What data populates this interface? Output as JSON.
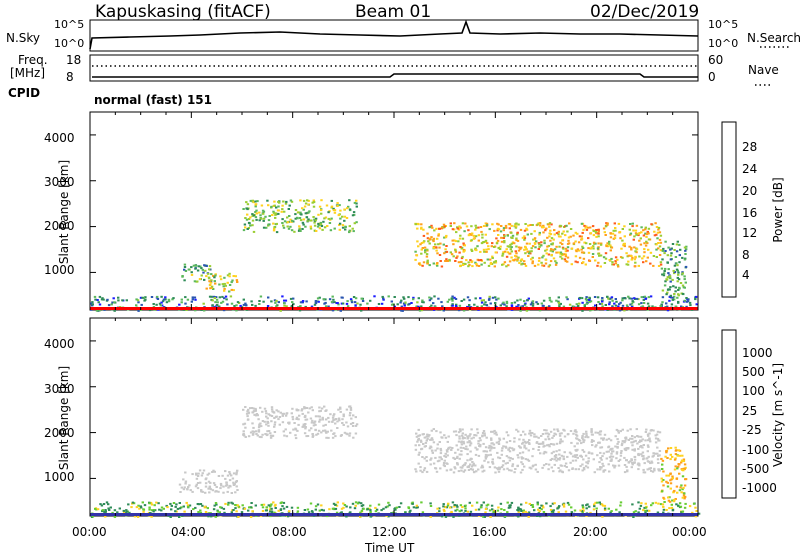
{
  "header": {
    "station": "Kapuskasing (fitACF)",
    "beam": "Beam 01",
    "date": "02/Dec/2019"
  },
  "top_strip": {
    "left_label": "N.Sky",
    "right_label": "N.Search",
    "left_ticks": [
      "10^5",
      "10^0"
    ],
    "right_ticks": [
      "10^5",
      "10^0"
    ]
  },
  "freq_strip": {
    "left_label_line1": "Freq.",
    "left_label_line2": "[MHz]",
    "cpid_label": "CPID",
    "right_label": "Nave",
    "left_ticks": [
      "18",
      "8"
    ],
    "right_ticks": [
      "60",
      "0"
    ]
  },
  "cpid_text": "normal (fast) 151",
  "colors": {
    "power_scale": [
      "#1a1aff",
      "#2a55b0",
      "#2e8b57",
      "#5cb85c",
      "#9acd32",
      "#ffd21f",
      "#ff9f1a",
      "#ff5a1a",
      "#ff0000"
    ],
    "velocity_scale": [
      "#ff0000",
      "#ff5a1a",
      "#ff9f1a",
      "#ffd21f",
      "#c8c8c8",
      "#66cc33",
      "#2e8b57",
      "#2a55b0",
      "#1a1aff"
    ],
    "ground_scatter": "#c8c8c8"
  },
  "chart_data": [
    {
      "type": "heatmap",
      "title": "",
      "xlabel": "",
      "ylabel": "Slant Range [km]",
      "y_ticks": [
        "1000",
        "2000",
        "3000",
        "4000"
      ],
      "ylim": [
        180,
        4500
      ],
      "xlim_hours": [
        0,
        24
      ],
      "colorbar": {
        "label": "Power [dB]",
        "ticks": [
          "4",
          "8",
          "12",
          "16",
          "20",
          "24",
          "28"
        ],
        "range": [
          0,
          30
        ]
      },
      "echo_regions": [
        {
          "t_start": 0.0,
          "t_end": 24.0,
          "r_min": 180,
          "r_max": 500,
          "level": 7
        },
        {
          "t_start": 3.5,
          "t_end": 4.8,
          "r_min": 800,
          "r_max": 1200,
          "level": 11
        },
        {
          "t_start": 4.5,
          "t_end": 5.8,
          "r_min": 600,
          "r_max": 1000,
          "level": 16
        },
        {
          "t_start": 6.0,
          "t_end": 10.5,
          "r_min": 1900,
          "r_max": 2600,
          "level": 13
        },
        {
          "t_start": 12.8,
          "t_end": 22.5,
          "r_min": 1150,
          "r_max": 2100,
          "level": 19
        },
        {
          "t_start": 22.5,
          "t_end": 23.5,
          "r_min": 500,
          "r_max": 1700,
          "level": 10
        }
      ]
    },
    {
      "type": "heatmap",
      "title": "",
      "xlabel": "Time UT",
      "ylabel": "Slant Range [km]",
      "x_ticks": [
        "00:00",
        "04:00",
        "08:00",
        "12:00",
        "16:00",
        "20:00",
        "00:00"
      ],
      "y_ticks": [
        "1000",
        "2000",
        "3000",
        "4000"
      ],
      "ylim": [
        180,
        4500
      ],
      "xlim_hours": [
        0,
        24
      ],
      "colorbar": {
        "label": "Velocity [m s^-1]",
        "ticks": [
          "1000",
          "500",
          "100",
          "25",
          "-25",
          "-100",
          "-500",
          "-1000"
        ]
      },
      "echo_regions": [
        {
          "t_start": 0.0,
          "t_end": 24.0,
          "r_min": 180,
          "r_max": 500,
          "velocity": 100
        },
        {
          "t_start": 3.5,
          "t_end": 5.8,
          "r_min": 700,
          "r_max": 1200,
          "velocity": 0
        },
        {
          "t_start": 6.0,
          "t_end": 10.5,
          "r_min": 1900,
          "r_max": 2600,
          "velocity": 0
        },
        {
          "t_start": 12.8,
          "t_end": 22.5,
          "r_min": 1150,
          "r_max": 2100,
          "velocity": 0
        },
        {
          "t_start": 22.5,
          "t_end": 23.5,
          "r_min": 500,
          "r_max": 1700,
          "velocity": -100
        }
      ]
    }
  ]
}
